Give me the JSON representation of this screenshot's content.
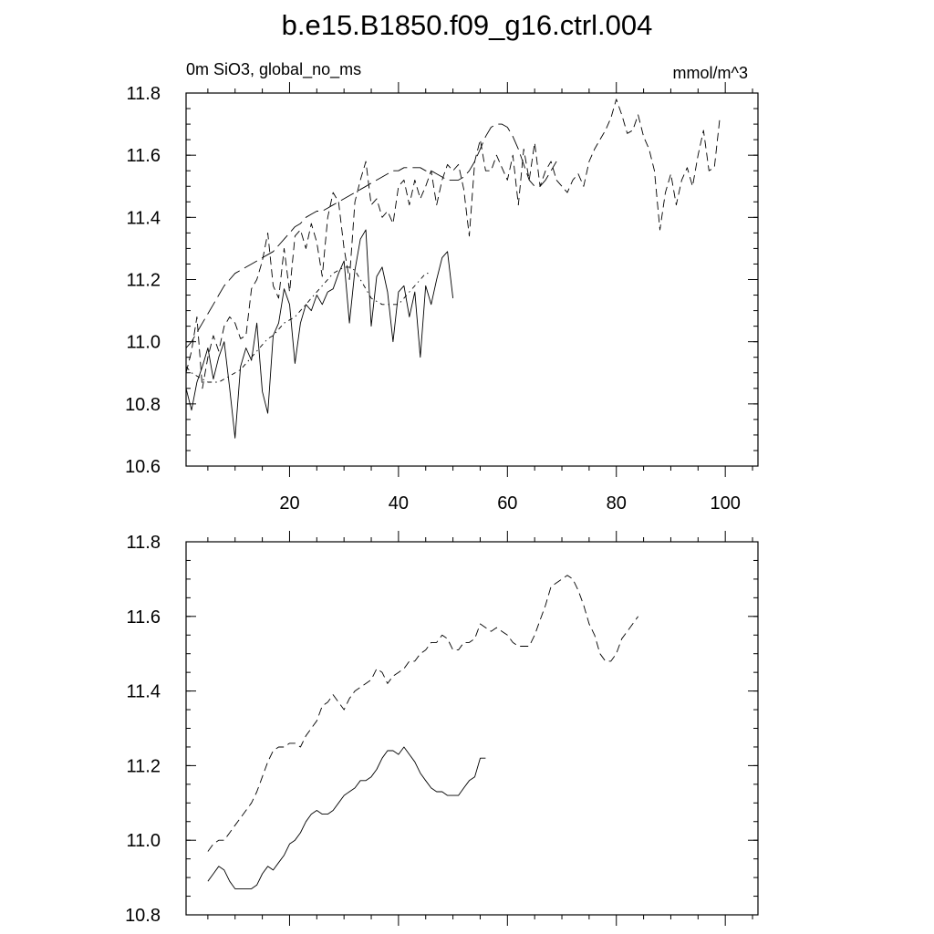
{
  "title": "b.e15.B1850.f09_g16.ctrl.004",
  "chart_data": [
    {
      "type": "line",
      "subtitle_left": "0m SiO3, global_no_ms",
      "subtitle_right": "mmol/m^3",
      "xlim": [
        1,
        106
      ],
      "ylim": [
        10.6,
        11.8
      ],
      "x_ticks": [
        20,
        40,
        60,
        80,
        100
      ],
      "x_tick_labels": [
        "20",
        "40",
        "60",
        "80",
        "100"
      ],
      "y_ticks": [
        10.6,
        10.8,
        11.0,
        11.2,
        11.4,
        11.6,
        11.8
      ],
      "y_tick_labels": [
        "10.6",
        "10.8",
        "11.0",
        "11.2",
        "11.4",
        "11.6",
        "11.8"
      ],
      "grid": false,
      "series": [
        {
          "style": "solid",
          "x_start": 1,
          "values": [
            10.85,
            10.78,
            10.87,
            10.92,
            10.98,
            10.88,
            10.95,
            11.0,
            10.85,
            10.69,
            10.92,
            10.98,
            10.94,
            11.06,
            10.84,
            10.77,
            11.02,
            11.06,
            11.17,
            11.12,
            10.93,
            11.06,
            11.12,
            11.1,
            11.15,
            11.12,
            11.16,
            11.17,
            11.22,
            11.26,
            11.06,
            11.23,
            11.33,
            11.36,
            11.05,
            11.21,
            11.24,
            11.16,
            11.0,
            11.16,
            11.18,
            11.08,
            11.16,
            10.95,
            11.18,
            11.12,
            11.2,
            11.27,
            11.29,
            11.14
          ]
        },
        {
          "style": "dashed",
          "x_start": 1,
          "values": [
            10.9,
            10.97,
            11.08,
            10.85,
            10.95,
            11.02,
            10.97,
            11.05,
            11.08,
            11.06,
            11.01,
            11.02,
            11.17,
            11.2,
            11.26,
            11.35,
            11.18,
            11.14,
            11.3,
            11.16,
            11.34,
            11.36,
            11.3,
            11.38,
            11.32,
            11.21,
            11.4,
            11.48,
            11.45,
            11.3,
            11.2,
            11.45,
            11.52,
            11.58,
            11.44,
            11.46,
            11.4,
            11.42,
            11.38,
            11.5,
            11.52,
            11.44,
            11.52,
            11.46,
            11.5,
            11.55,
            11.44,
            11.52,
            11.57,
            11.55,
            11.57,
            11.49,
            11.34,
            11.58,
            11.65,
            11.55,
            11.55,
            11.6,
            11.56,
            11.52,
            11.6,
            11.44,
            11.62,
            11.52,
            11.64,
            11.5,
            11.55,
            11.58,
            11.52,
            11.5,
            11.48,
            11.52,
            11.54,
            11.5,
            11.58,
            11.62,
            11.65,
            11.68,
            11.72,
            11.78,
            11.73,
            11.67,
            11.68,
            11.73,
            11.66,
            11.62,
            11.55,
            11.36,
            11.48,
            11.54,
            11.44,
            11.52,
            11.56,
            11.5,
            11.6,
            11.68,
            11.55,
            11.56,
            11.72
          ]
        },
        {
          "style": "dash-dot",
          "x_start": 1,
          "values": [
            10.92,
            10.9,
            10.89,
            10.88,
            10.87,
            10.87,
            10.87,
            10.88,
            10.89,
            10.9,
            10.91,
            10.93,
            10.95,
            10.97,
            10.99,
            11.01,
            11.02,
            11.04,
            11.06,
            11.07,
            11.08,
            11.1,
            11.12,
            11.14,
            11.16,
            11.18,
            11.2,
            11.22,
            11.23,
            11.24,
            11.24,
            11.23,
            11.2,
            11.17,
            11.14,
            11.13,
            11.12,
            11.12,
            11.12,
            11.12,
            11.14,
            11.16,
            11.18,
            11.2,
            11.22,
            11.22
          ]
        },
        {
          "style": "long-dash",
          "x_start": 1,
          "values": [
            10.98,
            11.0,
            11.03,
            11.06,
            11.09,
            11.12,
            11.15,
            11.18,
            11.2,
            11.22,
            11.23,
            11.24,
            11.25,
            11.26,
            11.27,
            11.28,
            11.29,
            11.31,
            11.33,
            11.35,
            11.37,
            11.38,
            11.4,
            11.41,
            11.42,
            11.42,
            11.43,
            11.44,
            11.45,
            11.46,
            11.47,
            11.48,
            11.49,
            11.5,
            11.51,
            11.52,
            11.53,
            11.54,
            11.55,
            11.55,
            11.56,
            11.56,
            11.56,
            11.56,
            11.55,
            11.55,
            11.54,
            11.53,
            11.52,
            11.52,
            11.52,
            11.53,
            11.55,
            11.58,
            11.62,
            11.66,
            11.69,
            11.7,
            11.7,
            11.69,
            11.66,
            11.62,
            11.57,
            11.52,
            11.5,
            11.5,
            11.52,
            11.55,
            11.58
          ]
        }
      ]
    },
    {
      "type": "line",
      "xlim": [
        1,
        106
      ],
      "ylim": [
        10.8,
        11.8
      ],
      "x_ticks": [
        20,
        40,
        60,
        80,
        100
      ],
      "y_ticks": [
        10.8,
        11.0,
        11.2,
        11.4,
        11.6,
        11.8
      ],
      "y_tick_labels": [
        "10.8",
        "11.0",
        "11.2",
        "11.4",
        "11.6",
        "11.8"
      ],
      "grid": false,
      "series": [
        {
          "style": "solid",
          "x_start": 5,
          "values": [
            10.89,
            10.91,
            10.93,
            10.92,
            10.89,
            10.87,
            10.87,
            10.87,
            10.87,
            10.88,
            10.91,
            10.93,
            10.92,
            10.94,
            10.96,
            10.99,
            11.0,
            11.02,
            11.05,
            11.07,
            11.08,
            11.07,
            11.07,
            11.08,
            11.1,
            11.12,
            11.13,
            11.14,
            11.16,
            11.16,
            11.17,
            11.19,
            11.22,
            11.24,
            11.24,
            11.23,
            11.25,
            11.23,
            11.21,
            11.18,
            11.16,
            11.14,
            11.13,
            11.13,
            11.12,
            11.12,
            11.12,
            11.14,
            11.16,
            11.17,
            11.22,
            11.22
          ]
        },
        {
          "style": "dashed",
          "x_start": 5,
          "values": [
            10.97,
            10.99,
            11.0,
            11.0,
            11.02,
            11.04,
            11.06,
            11.08,
            11.1,
            11.13,
            11.17,
            11.21,
            11.24,
            11.25,
            11.25,
            11.26,
            11.26,
            11.25,
            11.28,
            11.3,
            11.32,
            11.36,
            11.37,
            11.39,
            11.37,
            11.35,
            11.38,
            11.4,
            11.41,
            11.42,
            11.43,
            11.46,
            11.45,
            11.42,
            11.44,
            11.45,
            11.46,
            11.48,
            11.48,
            11.5,
            11.51,
            11.53,
            11.53,
            11.55,
            11.54,
            11.51,
            11.51,
            11.53,
            11.53,
            11.54,
            11.58,
            11.57,
            11.56,
            11.57,
            11.56,
            11.55,
            11.53,
            11.52,
            11.52,
            11.52,
            11.55,
            11.59,
            11.63,
            11.68,
            11.69,
            11.7,
            11.71,
            11.7,
            11.67,
            11.63,
            11.58,
            11.55,
            11.5,
            11.48,
            11.48,
            11.5,
            11.54,
            11.56,
            11.58,
            11.6
          ]
        }
      ]
    }
  ]
}
